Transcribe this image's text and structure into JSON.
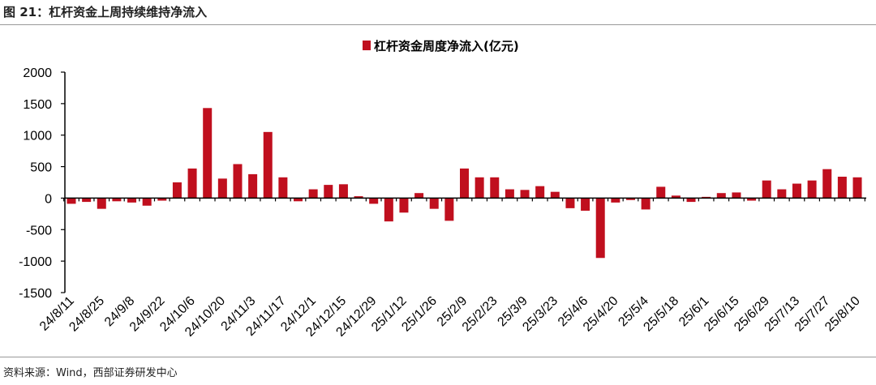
{
  "figure_title": "图 21：杠杆资金上周持续维持净流入",
  "source": "资料来源：Wind，西部证券研发中心",
  "chart_data": {
    "type": "bar",
    "title": "",
    "legend": [
      {
        "name": "杠杆资金周度净流入(亿元)",
        "color": "#C00F1E"
      }
    ],
    "legend_position": "top-center",
    "xlabel": "",
    "ylabel": "",
    "ylim": [
      -1500,
      2000
    ],
    "yticks": [
      2000,
      1500,
      1000,
      500,
      0,
      -500,
      -1000,
      -1500
    ],
    "grid": false,
    "x_note": "weekly, 53 bars; tick label every 2nd week starting with first",
    "tick_labels": [
      "24/8/11",
      "24/8/25",
      "24/9/8",
      "24/9/22",
      "24/10/6",
      "24/10/20",
      "24/11/3",
      "24/11/17",
      "24/12/1",
      "24/12/15",
      "24/12/29",
      "25/1/12",
      "25/1/26",
      "25/2/9",
      "25/2/23",
      "25/3/9",
      "25/3/23",
      "25/4/6",
      "25/4/20",
      "25/5/4",
      "25/5/18",
      "25/6/1",
      "25/6/15",
      "25/6/29",
      "25/7/13",
      "25/7/27",
      "25/8/10"
    ],
    "series": [
      {
        "name": "杠杆资金周度净流入(亿元)",
        "values": [
          -90,
          -60,
          -170,
          -50,
          -70,
          -120,
          -40,
          250,
          470,
          1430,
          310,
          540,
          380,
          1050,
          330,
          -50,
          140,
          210,
          220,
          30,
          -90,
          -370,
          -230,
          80,
          -170,
          -360,
          470,
          330,
          330,
          140,
          130,
          190,
          100,
          -160,
          -200,
          -950,
          -70,
          -30,
          -180,
          180,
          40,
          -60,
          20,
          80,
          90,
          -40,
          280,
          140,
          230,
          280,
          460,
          340,
          330
        ]
      }
    ]
  }
}
